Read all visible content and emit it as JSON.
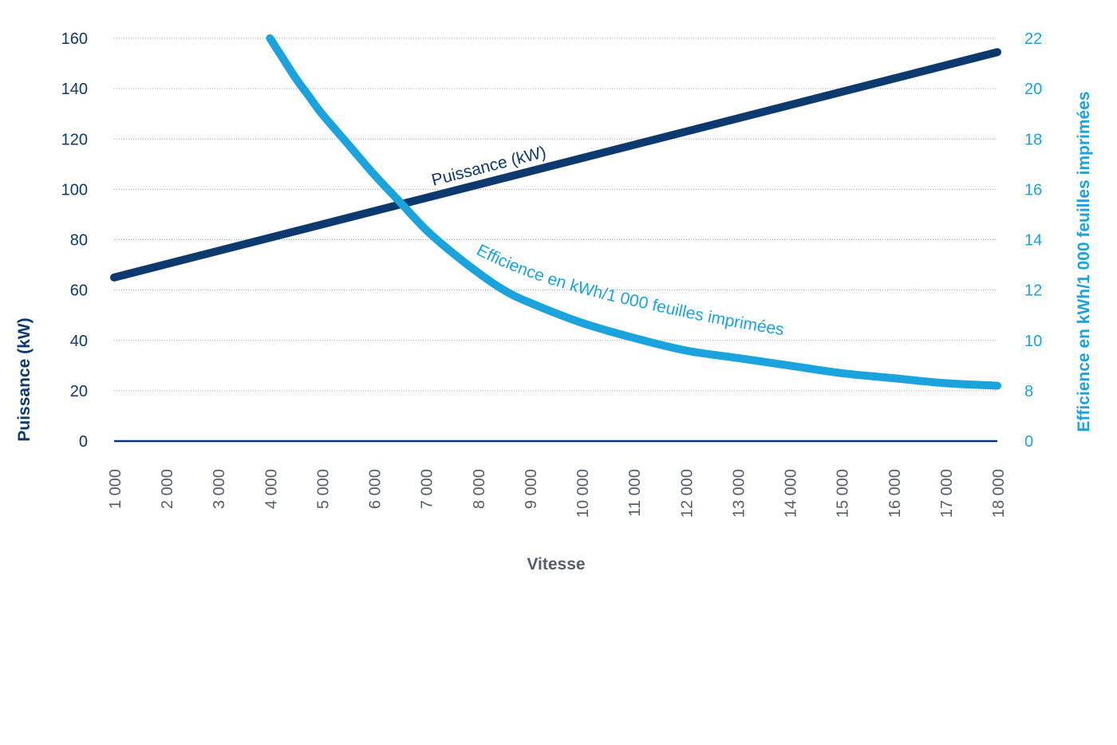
{
  "chart_data": {
    "type": "line",
    "xlabel": "Vitesse",
    "ylabel_left": "Puissance (kW)",
    "ylabel_right": "Efficience en kWh/1 000 feuilles imprimées",
    "x_ticks": [
      1000,
      2000,
      3000,
      4000,
      5000,
      6000,
      7000,
      8000,
      9000,
      10000,
      11000,
      12000,
      13000,
      14000,
      15000,
      16000,
      17000,
      18000
    ],
    "x_tick_labels": [
      "1 000",
      "2 000",
      "3 000",
      "4 000",
      "5 000",
      "6 000",
      "7 000",
      "8 000",
      "9 000",
      "10 000",
      "11 000",
      "12 000",
      "13 000",
      "14 000",
      "15 000",
      "16 000",
      "17 000",
      "18 000"
    ],
    "xlim": [
      1000,
      18000
    ],
    "ylim_left": [
      0,
      160
    ],
    "y_ticks_left": [
      0,
      20,
      40,
      60,
      80,
      100,
      120,
      140,
      160
    ],
    "y_tick_labels_left": [
      "0",
      "20",
      "40",
      "60",
      "80",
      "100",
      "120",
      "140",
      "160"
    ],
    "y_tick_labels_right": [
      "0",
      "8",
      "10",
      "12",
      "14",
      "16",
      "18",
      "20",
      "22"
    ],
    "grid": true,
    "series": [
      {
        "name": "Puissance (kW)",
        "axis": "left",
        "color": "#0d3a6e",
        "x": [
          1000,
          18000
        ],
        "values": [
          65,
          154.5
        ]
      },
      {
        "name": "Efficience en kWh/1 000 feuilles imprimées",
        "axis": "right",
        "color": "#1aa3dd",
        "x": [
          4000,
          4250,
          4500,
          4750,
          5000,
          5500,
          6000,
          6500,
          7000,
          7500,
          8000,
          8500,
          9000,
          10000,
          11000,
          12000,
          13000,
          14000,
          15000,
          16000,
          17000,
          18000
        ],
        "values": [
          22,
          21.2,
          20.4,
          19.7,
          19,
          17.8,
          16.6,
          15.5,
          14.4,
          13.5,
          12.7,
          12.0,
          11.5,
          10.7,
          10.1,
          9.6,
          9.3,
          9.0,
          8.7,
          8.5,
          8.3,
          8.2
        ]
      }
    ]
  }
}
